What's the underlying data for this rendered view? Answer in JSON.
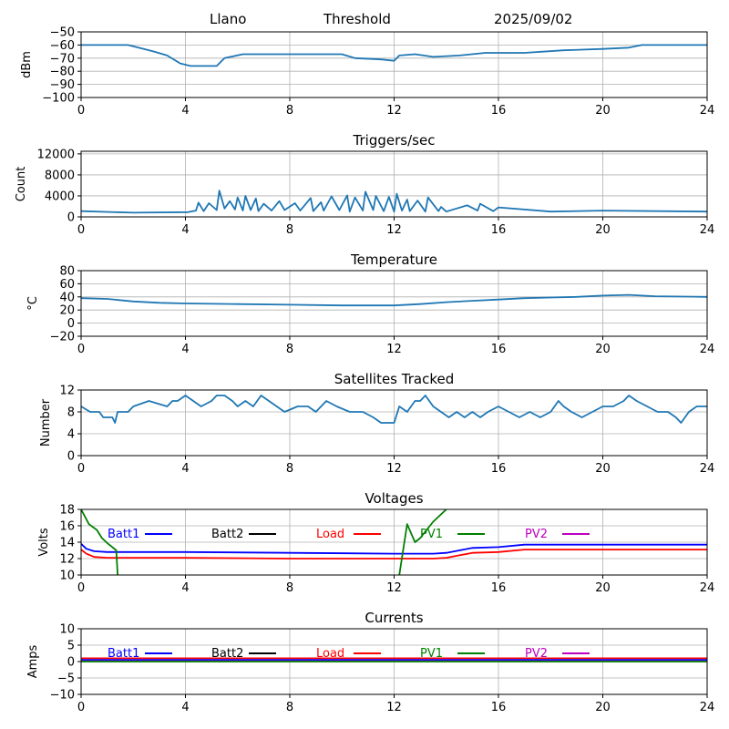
{
  "header": {
    "site": "Llano",
    "metric": "Threshold",
    "date": "2025/09/02"
  },
  "colors": {
    "series_default": "#1f77b4",
    "Batt1": "#0000ff",
    "Batt2": "#000000",
    "Load": "#ff0000",
    "PV1": "#008000",
    "PV2": "#bf00bf",
    "grid": "#b0b0b0"
  },
  "chart_data": [
    {
      "type": "line",
      "title": "",
      "ylabel": "dBm",
      "xlim": [
        0,
        24
      ],
      "ylim": [
        -100,
        -50
      ],
      "xticks": [
        "0",
        "4",
        "8",
        "12",
        "16",
        "20",
        "24"
      ],
      "yticks": [
        "−50",
        "−60",
        "−70",
        "−80",
        "−90",
        "−100"
      ],
      "ytick_values": [
        -50,
        -60,
        -70,
        -80,
        -90,
        -100
      ],
      "series": [
        {
          "x": [
            0,
            1.8,
            2.2,
            2.8,
            3.3,
            3.8,
            4.2,
            5.2,
            5.5,
            6.2,
            8,
            10,
            10.5,
            11.5,
            12,
            12.2,
            12.8,
            13.5,
            14.5,
            15.5,
            17,
            18.5,
            20,
            21,
            21.5,
            24
          ],
          "y": [
            -60,
            -60,
            -62,
            -65,
            -68,
            -74,
            -76,
            -76,
            -70,
            -67,
            -67,
            -67,
            -70,
            -71,
            -72,
            -68,
            -67,
            -69,
            -68,
            -66,
            -66,
            -64,
            -63,
            -62,
            -60,
            -60
          ]
        }
      ]
    },
    {
      "type": "line",
      "title": "Triggers/sec",
      "ylabel": "Count",
      "xlim": [
        0,
        24
      ],
      "ylim": [
        0,
        12500
      ],
      "xticks": [
        "0",
        "4",
        "8",
        "12",
        "16",
        "20",
        "24"
      ],
      "yticks": [
        "0",
        "4000",
        "8000",
        "12000"
      ],
      "ytick_values": [
        0,
        4000,
        8000,
        12000
      ],
      "series": [
        {
          "x": [
            0,
            2,
            4.1,
            4.4,
            4.5,
            4.7,
            4.9,
            5.2,
            5.3,
            5.5,
            5.7,
            5.9,
            6,
            6.2,
            6.3,
            6.5,
            6.7,
            6.8,
            7,
            7.3,
            7.6,
            7.8,
            8.2,
            8.4,
            8.8,
            8.9,
            9.2,
            9.3,
            9.6,
            9.9,
            10.2,
            10.3,
            10.5,
            10.8,
            10.9,
            11.2,
            11.3,
            11.6,
            11.8,
            12,
            12.1,
            12.3,
            12.5,
            12.6,
            12.9,
            13.2,
            13.3,
            13.7,
            13.8,
            14,
            14.8,
            15.2,
            15.3,
            15.8,
            16,
            18,
            20,
            24
          ],
          "y": [
            1100,
            800,
            900,
            1200,
            2700,
            1100,
            2600,
            1300,
            5000,
            1600,
            3000,
            1400,
            3700,
            1200,
            4000,
            1300,
            3500,
            1100,
            2500,
            1200,
            3000,
            1300,
            2600,
            1200,
            3600,
            1100,
            2800,
            1200,
            3900,
            1300,
            4100,
            1000,
            3700,
            1200,
            4800,
            1300,
            4000,
            1100,
            3800,
            1000,
            4400,
            1200,
            3300,
            1100,
            3100,
            1000,
            3700,
            1100,
            1900,
            1000,
            2200,
            1200,
            2500,
            1100,
            1800,
            1000,
            1200,
            1000
          ]
        }
      ]
    },
    {
      "type": "line",
      "title": "Temperature",
      "ylabel": "°C",
      "xlim": [
        0,
        24
      ],
      "ylim": [
        -20,
        80
      ],
      "xticks": [
        "0",
        "4",
        "8",
        "12",
        "16",
        "20",
        "24"
      ],
      "yticks": [
        "−20",
        "0",
        "20",
        "40",
        "60",
        "80"
      ],
      "ytick_values": [
        -20,
        0,
        20,
        40,
        60,
        80
      ],
      "series": [
        {
          "x": [
            0,
            1,
            2,
            3,
            4,
            6,
            8,
            10,
            12,
            13,
            14,
            15,
            16,
            17,
            18,
            19,
            20,
            21,
            22,
            24
          ],
          "y": [
            38,
            37,
            33,
            31,
            30,
            29,
            28,
            27,
            27,
            29,
            32,
            34,
            36,
            38,
            39,
            40,
            42,
            43,
            41,
            40
          ]
        }
      ]
    },
    {
      "type": "line",
      "title": "Satellites Tracked",
      "ylabel": "Number",
      "xlim": [
        0,
        24
      ],
      "ylim": [
        0,
        12
      ],
      "xticks": [
        "0",
        "4",
        "8",
        "12",
        "16",
        "20",
        "24"
      ],
      "yticks": [
        "0",
        "4",
        "8",
        "12"
      ],
      "ytick_values": [
        0,
        4,
        8,
        12
      ],
      "series": [
        {
          "x": [
            0,
            0.35,
            0.7,
            0.85,
            1.2,
            1.3,
            1.35,
            1.4,
            1.8,
            2,
            2.6,
            3.3,
            3.5,
            3.7,
            4,
            4.3,
            4.6,
            5,
            5.2,
            5.5,
            5.8,
            6,
            6.3,
            6.6,
            6.9,
            7.2,
            7.5,
            7.8,
            8.3,
            8.7,
            9,
            9.4,
            9.8,
            10.3,
            10.8,
            11.2,
            11.5,
            12,
            12.2,
            12.5,
            12.8,
            13,
            13.2,
            13.5,
            13.8,
            14.1,
            14.4,
            14.7,
            15,
            15.3,
            15.6,
            16,
            16.4,
            16.8,
            17.2,
            17.6,
            18,
            18.3,
            18.5,
            18.8,
            19.2,
            19.6,
            20,
            20.4,
            20.8,
            21,
            21.3,
            21.7,
            22.1,
            22.5,
            22.8,
            23,
            23.3,
            23.6,
            24
          ],
          "y": [
            9,
            8,
            8,
            7,
            7,
            6,
            7,
            8,
            8,
            9,
            10,
            9,
            10,
            10,
            11,
            10,
            9,
            10,
            11,
            11,
            10,
            9,
            10,
            9,
            11,
            10,
            9,
            8,
            9,
            9,
            8,
            10,
            9,
            8,
            8,
            7,
            6,
            6,
            9,
            8,
            10,
            10,
            11,
            9,
            8,
            7,
            8,
            7,
            8,
            7,
            8,
            9,
            8,
            7,
            8,
            7,
            8,
            10,
            9,
            8,
            7,
            8,
            9,
            9,
            10,
            11,
            10,
            9,
            8,
            8,
            7,
            6,
            8,
            9,
            9
          ]
        }
      ]
    },
    {
      "type": "line",
      "title": "Voltages",
      "ylabel": "Volts",
      "xlim": [
        0,
        24
      ],
      "ylim": [
        10,
        18
      ],
      "xticks": [
        "0",
        "4",
        "8",
        "12",
        "16",
        "20",
        "24"
      ],
      "yticks": [
        "10",
        "12",
        "14",
        "16",
        "18"
      ],
      "ytick_values": [
        10,
        12,
        14,
        16,
        18
      ],
      "legend": [
        "Batt1",
        "Batt2",
        "Load",
        "PV1",
        "PV2"
      ],
      "series": [
        {
          "name": "Batt1",
          "x": [
            0,
            0.2,
            0.5,
            1,
            4,
            8,
            12,
            13.5,
            14,
            14.5,
            15,
            16,
            17,
            20,
            24
          ],
          "y": [
            13.8,
            13.2,
            12.9,
            12.8,
            12.8,
            12.7,
            12.6,
            12.6,
            12.7,
            13,
            13.3,
            13.4,
            13.7,
            13.7,
            13.7
          ]
        },
        {
          "name": "Load",
          "x": [
            0,
            0.2,
            0.5,
            1,
            4,
            8,
            12,
            13.5,
            14,
            14.5,
            15,
            16,
            17,
            20,
            24
          ],
          "y": [
            13.1,
            12.6,
            12.2,
            12.1,
            12.1,
            12.0,
            12.0,
            12.0,
            12.1,
            12.4,
            12.7,
            12.8,
            13.1,
            13.1,
            13.1
          ]
        },
        {
          "name": "PV1",
          "x": [
            0,
            0.3,
            0.6,
            0.8,
            1.0,
            1.2,
            1.35,
            1.4
          ],
          "y": [
            18,
            16.2,
            15.5,
            14.5,
            13.9,
            13.4,
            13.0,
            10
          ]
        },
        {
          "name": "PV1",
          "x": [
            12.2,
            12.5,
            12.8,
            13,
            13.5,
            14
          ],
          "y": [
            10,
            16.2,
            14,
            14.5,
            16.5,
            18
          ]
        }
      ]
    },
    {
      "type": "line",
      "title": "Currents",
      "ylabel": "Amps",
      "xlim": [
        0,
        24
      ],
      "ylim": [
        -10,
        10
      ],
      "xticks": [
        "0",
        "4",
        "8",
        "12",
        "16",
        "20",
        "24"
      ],
      "yticks": [
        "−10",
        "−5",
        "0",
        "5",
        "10"
      ],
      "ytick_values": [
        -10,
        -5,
        0,
        5,
        10
      ],
      "legend": [
        "Batt1",
        "Batt2",
        "Load",
        "PV1",
        "PV2"
      ],
      "series": [
        {
          "name": "Load",
          "x": [
            0,
            24
          ],
          "y": [
            1.0,
            1.0
          ]
        },
        {
          "name": "Batt1",
          "x": [
            0,
            24
          ],
          "y": [
            0.5,
            0.5
          ]
        },
        {
          "name": "PV2",
          "x": [
            0,
            24
          ],
          "y": [
            0.1,
            0.1
          ]
        },
        {
          "name": "PV1",
          "x": [
            0,
            24
          ],
          "y": [
            0.0,
            0.0
          ]
        }
      ]
    }
  ]
}
